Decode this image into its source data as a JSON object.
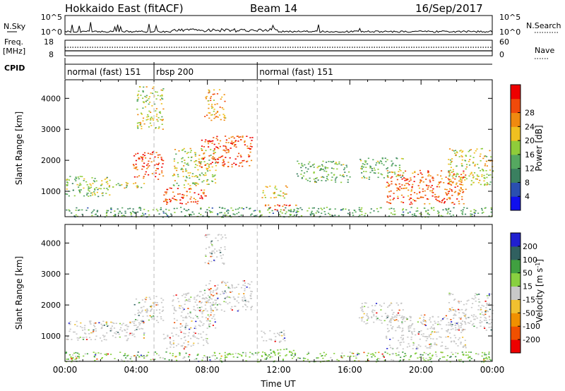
{
  "header": {
    "station": "Hokkaido East (fitACF)",
    "beam": "Beam 14",
    "date": "16/Sep/2017"
  },
  "sky_panel": {
    "label": "N.Sky",
    "left_ticks": [
      "10^5",
      "10^0"
    ],
    "right_ticks": [
      "10^5",
      "10^0"
    ],
    "right_label": "N.Search"
  },
  "freq_panel": {
    "label_line1": "Freq.",
    "label_line2": "[MHz]",
    "left_ticks": [
      "18",
      "8"
    ],
    "right_ticks": [
      "60",
      "0"
    ],
    "right_label": "Nave"
  },
  "cpid_panel": {
    "label": "CPID",
    "segments": [
      {
        "start": 0.0,
        "end": 5.0,
        "label": "normal (fast) 151"
      },
      {
        "start": 5.0,
        "end": 10.8,
        "label": "rbsp 200"
      },
      {
        "start": 10.8,
        "end": 24.0,
        "label": "normal (fast) 151"
      }
    ]
  },
  "colors": {
    "power": [
      "#1010ee",
      "#2a4fb0",
      "#3a8060",
      "#55a860",
      "#8fcc3a",
      "#f0c020",
      "#f08a10",
      "#f04a0a",
      "#ee0000"
    ],
    "velocity": [
      "#ee0000",
      "#f05000",
      "#f09000",
      "#f0c030",
      "#c8c8c8",
      "#88d040",
      "#40a040",
      "#306060",
      "#2020d0"
    ]
  },
  "chart_data": [
    {
      "type": "heatmap",
      "panel": "power",
      "xlabel": "",
      "ylabel": "Slant Range [km]",
      "xlim": [
        0,
        24
      ],
      "ylim": [
        180,
        4600
      ],
      "y_ticks": [
        "1000",
        "2000",
        "3000",
        "4000"
      ],
      "colorbar_label": "Power [dB]",
      "colorbar_ticks": [
        "4",
        "8",
        "12",
        "16",
        "20",
        "24",
        "28"
      ],
      "regions": [
        {
          "x": [
            0.0,
            24.0
          ],
          "y": [
            180,
            500
          ],
          "level": 0.35
        },
        {
          "x": [
            0.0,
            2.5
          ],
          "y": [
            850,
            1500
          ],
          "level": 0.45
        },
        {
          "x": [
            0.5,
            4.5
          ],
          "y": [
            1100,
            1300
          ],
          "level": 0.55
        },
        {
          "x": [
            3.8,
            5.5
          ],
          "y": [
            1400,
            2300
          ],
          "level": 0.9
        },
        {
          "x": [
            5.5,
            8.0
          ],
          "y": [
            600,
            1150
          ],
          "level": 0.85
        },
        {
          "x": [
            6.0,
            8.5
          ],
          "y": [
            1200,
            2400
          ],
          "level": 0.55
        },
        {
          "x": [
            7.5,
            10.5
          ],
          "y": [
            1800,
            2800
          ],
          "level": 0.9
        },
        {
          "x": [
            7.8,
            9.0
          ],
          "y": [
            3300,
            4300
          ],
          "level": 0.7
        },
        {
          "x": [
            4.0,
            5.5
          ],
          "y": [
            3000,
            4400
          ],
          "level": 0.55
        },
        {
          "x": [
            11.2,
            13.0
          ],
          "y": [
            400,
            600
          ],
          "level": 0.8
        },
        {
          "x": [
            11.0,
            12.5
          ],
          "y": [
            800,
            1200
          ],
          "level": 0.6
        },
        {
          "x": [
            13.0,
            16.0
          ],
          "y": [
            1300,
            2000
          ],
          "level": 0.4
        },
        {
          "x": [
            16.5,
            19.0
          ],
          "y": [
            1400,
            2100
          ],
          "level": 0.45
        },
        {
          "x": [
            18.0,
            22.5
          ],
          "y": [
            600,
            1700
          ],
          "level": 0.85
        },
        {
          "x": [
            21.5,
            24.0
          ],
          "y": [
            1200,
            2400
          ],
          "level": 0.55
        }
      ]
    },
    {
      "type": "heatmap",
      "panel": "velocity",
      "xlabel": "Time UT",
      "ylabel": "Slant Range [km]",
      "xlim": [
        0,
        24
      ],
      "ylim": [
        180,
        4600
      ],
      "x_ticks": [
        "00:00",
        "04:00",
        "08:00",
        "12:00",
        "16:00",
        "20:00",
        "00:00"
      ],
      "y_ticks": [
        "1000",
        "2000",
        "3000",
        "4000"
      ],
      "colorbar_label": "Velocity [m s^-1]",
      "colorbar_ticks": [
        "-200",
        "-100",
        "-50",
        "-15",
        "15",
        "50",
        "100",
        "200"
      ],
      "regions": [
        {
          "x": [
            0.0,
            24.0
          ],
          "y": [
            180,
            500
          ],
          "level": 0.65
        },
        {
          "x": [
            0.0,
            4.5
          ],
          "y": [
            850,
            1500
          ],
          "level": 0.5
        },
        {
          "x": [
            3.8,
            5.5
          ],
          "y": [
            1400,
            2300
          ],
          "level": 0.5
        },
        {
          "x": [
            5.5,
            8.0
          ],
          "y": [
            600,
            1150
          ],
          "level": 0.5
        },
        {
          "x": [
            6.0,
            8.5
          ],
          "y": [
            1200,
            2400
          ],
          "level": 0.45
        },
        {
          "x": [
            7.5,
            10.5
          ],
          "y": [
            1800,
            2800
          ],
          "level": 0.5
        },
        {
          "x": [
            7.8,
            9.0
          ],
          "y": [
            3300,
            4300
          ],
          "level": 0.5
        },
        {
          "x": [
            11.2,
            13.0
          ],
          "y": [
            400,
            600
          ],
          "level": 0.65
        },
        {
          "x": [
            11.0,
            12.5
          ],
          "y": [
            800,
            1200
          ],
          "level": 0.5
        },
        {
          "x": [
            16.5,
            19.0
          ],
          "y": [
            1400,
            2100
          ],
          "level": 0.5
        },
        {
          "x": [
            18.0,
            22.5
          ],
          "y": [
            600,
            1700
          ],
          "level": 0.5
        },
        {
          "x": [
            21.5,
            24.0
          ],
          "y": [
            1200,
            2400
          ],
          "level": 0.45
        }
      ]
    }
  ]
}
